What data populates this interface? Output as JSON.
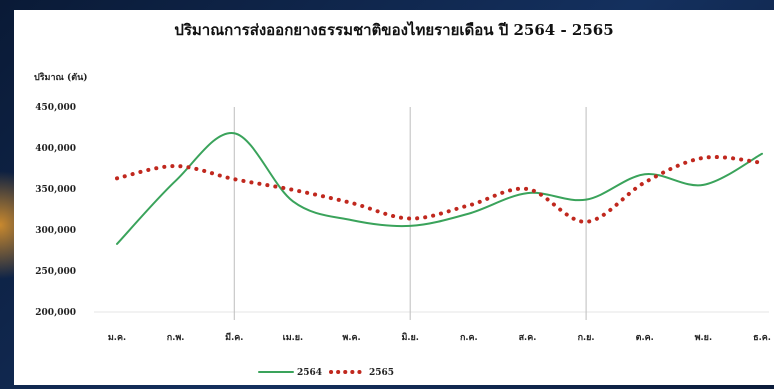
{
  "chart_data": {
    "type": "line",
    "title": "ปริมาณการส่งออกยางธรรมชาติของไทยรายเดือน ปี 2564 - 2565",
    "ylabel": "ปริมาณ (ตัน)",
    "xlabel": "",
    "categories": [
      "ม.ค.",
      "ก.พ.",
      "มี.ค.",
      "เม.ย.",
      "พ.ค.",
      "มิ.ย.",
      "ก.ค.",
      "ส.ค.",
      "ก.ย.",
      "ต.ค.",
      "พ.ย.",
      "ธ.ค."
    ],
    "ylim": [
      200000,
      450000
    ],
    "yticks": [
      200000,
      250000,
      300000,
      350000,
      400000,
      450000
    ],
    "ytick_labels": [
      "200,000",
      "250,000",
      "300,000",
      "350,000",
      "400,000",
      "450,000"
    ],
    "vertical_gridlines_after": [
      "มี.ค.",
      "มิ.ย.",
      "ก.ย."
    ],
    "legend_position": "bottom-center",
    "series": [
      {
        "name": "2564",
        "style": "solid",
        "color": "#3aa35b",
        "values": [
          283000,
          360000,
          418000,
          335000,
          312000,
          305000,
          320000,
          345000,
          337000,
          368000,
          355000,
          393000
        ]
      },
      {
        "name": "2565",
        "style": "dotted",
        "color": "#c0281e",
        "values": [
          363000,
          378000,
          362000,
          349000,
          333000,
          314000,
          330000,
          350000,
          310000,
          358000,
          388000,
          382000
        ]
      }
    ]
  }
}
